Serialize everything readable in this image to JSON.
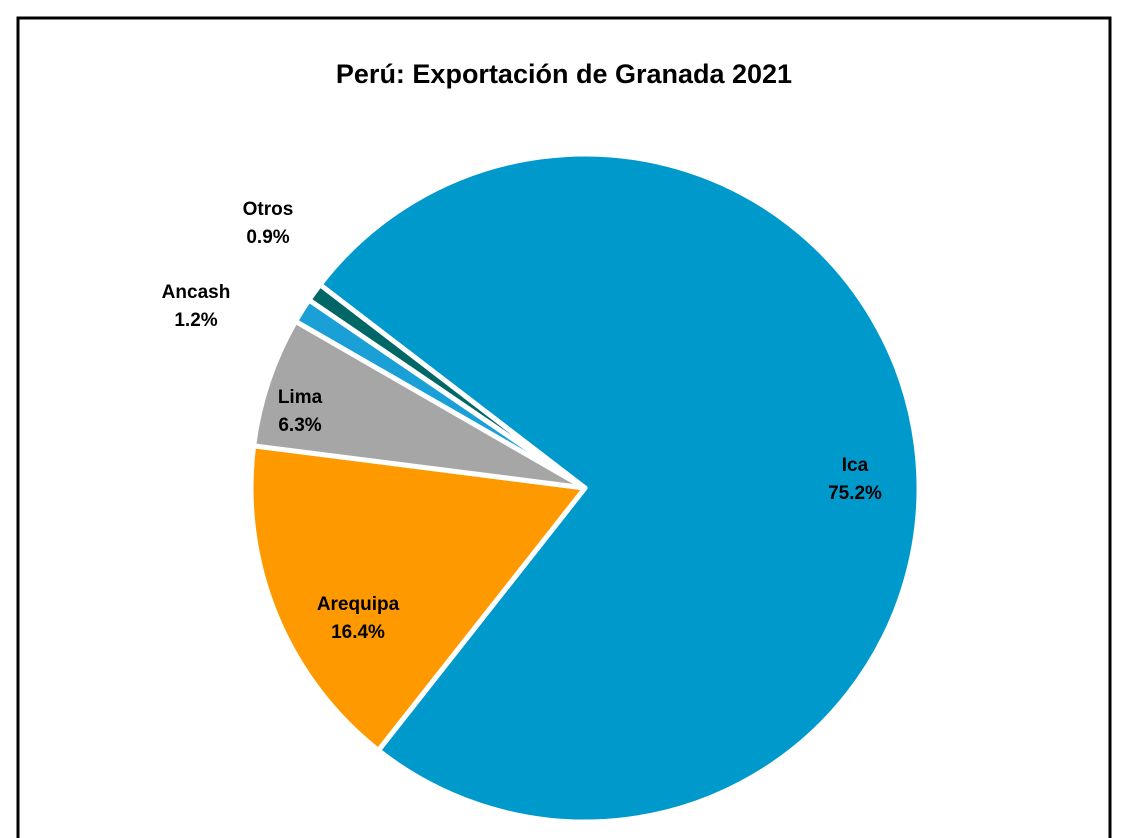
{
  "chart_data": {
    "type": "pie",
    "title": "Perú: Exportación de Granada 2021",
    "categories": [
      "Ica",
      "Arequipa",
      "Lima",
      "Ancash",
      "Otros"
    ],
    "values": [
      75.2,
      16.4,
      6.3,
      1.2,
      0.9
    ],
    "value_labels": [
      "75.2%",
      "16.4%",
      "6.3%",
      "1.2%",
      "0.9%"
    ],
    "colors": [
      "#0099cc",
      "#ff9900",
      "#a6a6a6",
      "#1a9fd6",
      "#006666"
    ]
  }
}
